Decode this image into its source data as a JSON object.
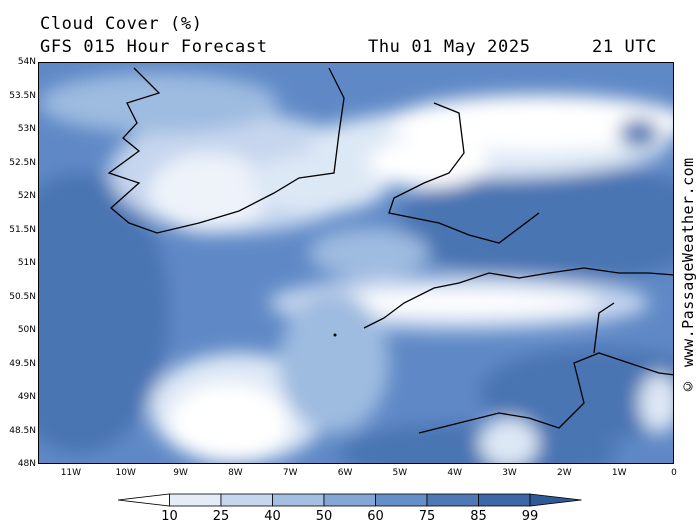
{
  "header": {
    "title": "Cloud Cover (%)",
    "subtitle": "GFS 015 Hour Forecast",
    "date": "Thu 01 May 2025",
    "time": "21 UTC"
  },
  "watermark": "© www.PassageWeather.com",
  "map": {
    "lat_labels": [
      "54N",
      "53.5N",
      "53N",
      "52.5N",
      "52N",
      "51.5N",
      "51N",
      "50.5N",
      "50N",
      "49.5N",
      "49N",
      "48.5N",
      "48N"
    ],
    "lon_labels": [
      "11W",
      "10W",
      "9W",
      "8W",
      "7W",
      "6W",
      "5W",
      "4W",
      "3W",
      "2W",
      "1W",
      "0"
    ]
  },
  "legend": {
    "labels": [
      "10",
      "25",
      "40",
      "50",
      "60",
      "75",
      "85",
      "99"
    ],
    "colors": [
      "#ffffff",
      "#e4ecf7",
      "#c6d6ee",
      "#a5bfe2",
      "#86a7d6",
      "#668fca",
      "#4f79b5",
      "#3d67a6",
      "#2f5a98"
    ]
  },
  "palette": {
    "clear": "#ffffff",
    "light": "#dde8f5",
    "mid": "#9ebbe0",
    "dense": "#6b93cc",
    "full": "#4a74b2",
    "coast": "#000000"
  }
}
